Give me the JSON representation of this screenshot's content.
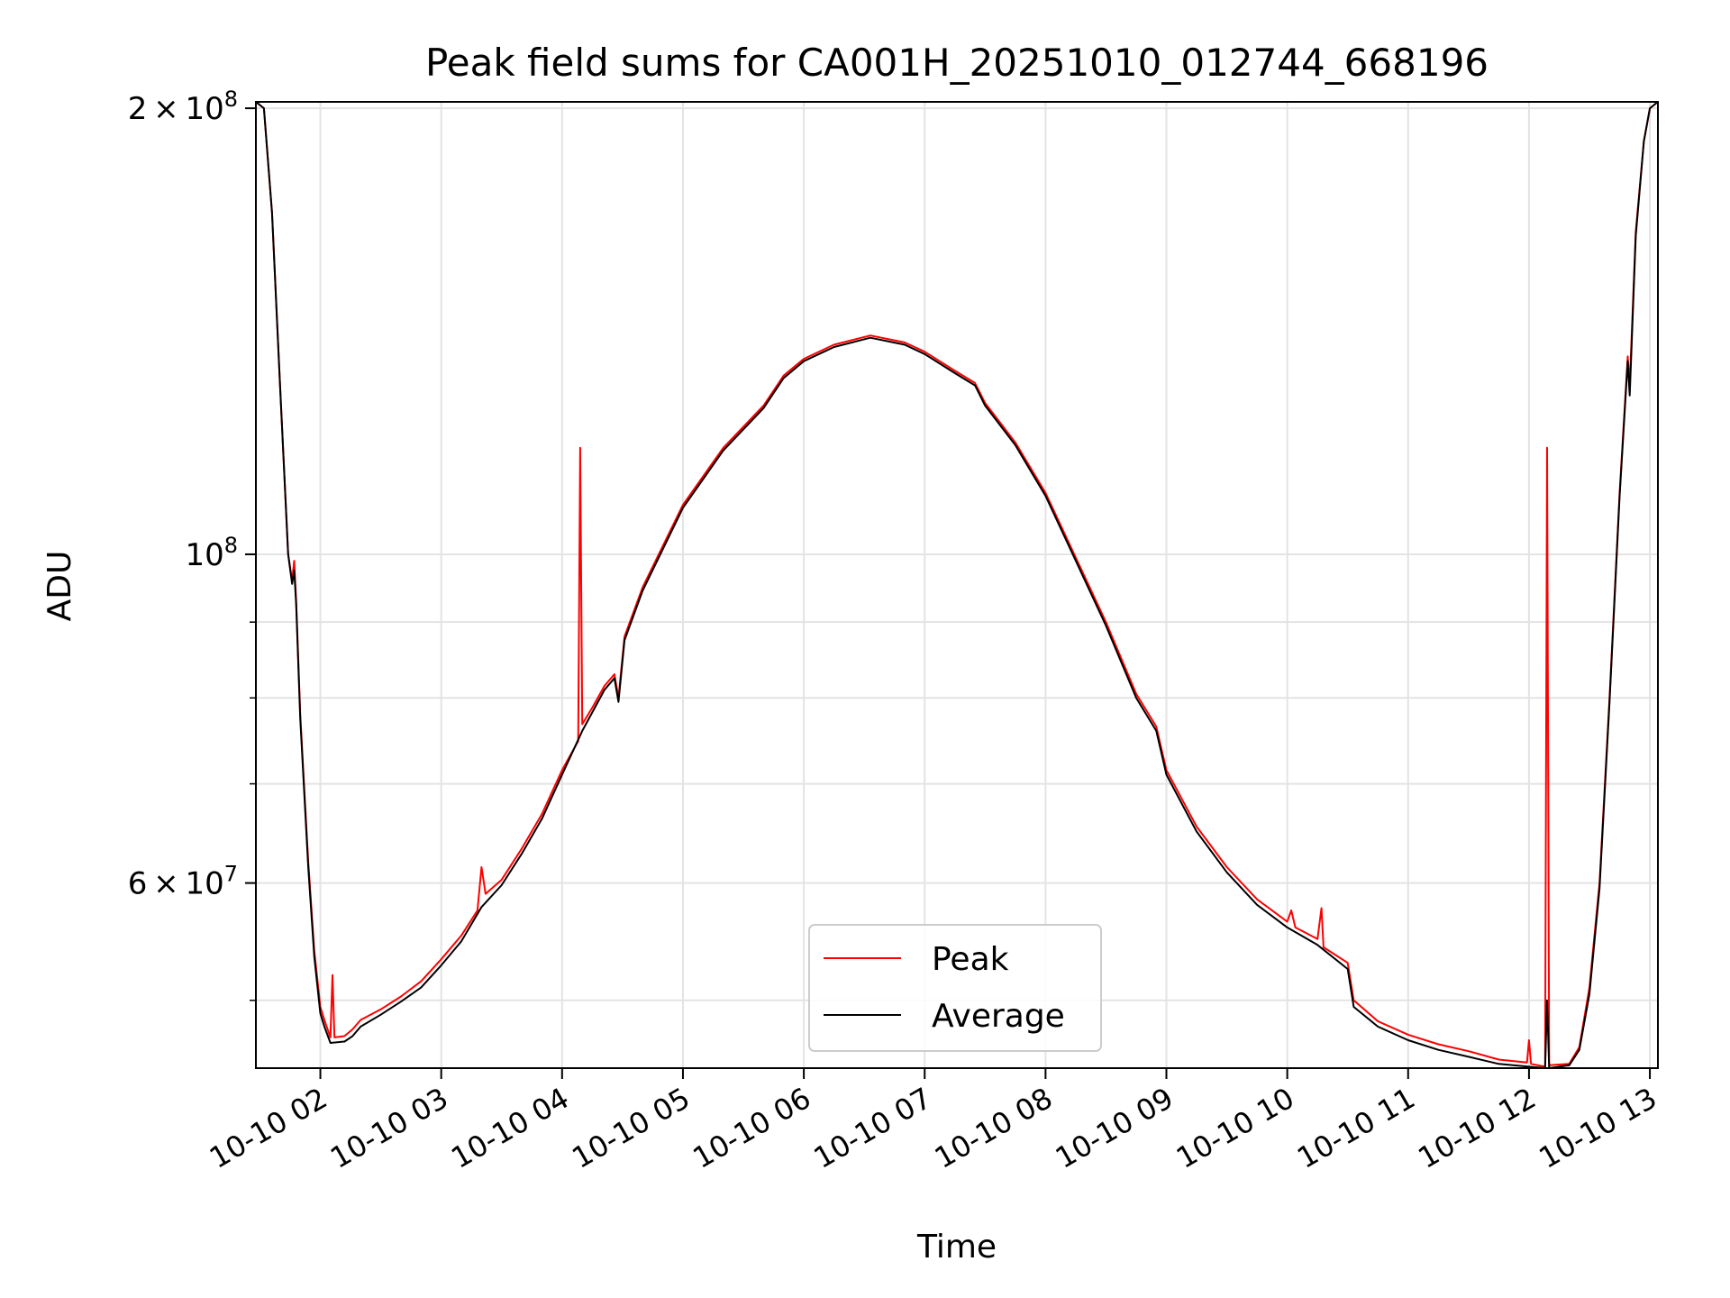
{
  "chart_data": {
    "type": "line",
    "title": "Peak field sums for CA001H_20251010_012744_668196",
    "xlabel": "Time",
    "ylabel": "ADU",
    "y_scale": "log",
    "grid": true,
    "legend_position": "lower center",
    "xlim": [
      "2025-10-10 01:28",
      "2025-10-10 13:04"
    ],
    "ylim": [
      45000000,
      202000000
    ],
    "x_ticks": [
      {
        "t": "2025-10-10 02:00",
        "label": "10-10 02"
      },
      {
        "t": "2025-10-10 03:00",
        "label": "10-10 03"
      },
      {
        "t": "2025-10-10 04:00",
        "label": "10-10 04"
      },
      {
        "t": "2025-10-10 05:00",
        "label": "10-10 05"
      },
      {
        "t": "2025-10-10 06:00",
        "label": "10-10 06"
      },
      {
        "t": "2025-10-10 07:00",
        "label": "10-10 07"
      },
      {
        "t": "2025-10-10 08:00",
        "label": "10-10 08"
      },
      {
        "t": "2025-10-10 09:00",
        "label": "10-10 09"
      },
      {
        "t": "2025-10-10 10:00",
        "label": "10-10 10"
      },
      {
        "t": "2025-10-10 11:00",
        "label": "10-10 11"
      },
      {
        "t": "2025-10-10 12:00",
        "label": "10-10 12"
      },
      {
        "t": "2025-10-10 13:00",
        "label": "10-10 13"
      }
    ],
    "y_major_ticks": [
      {
        "value": 60000000,
        "mantissa": "6",
        "exponent": "7"
      },
      {
        "value": 100000000,
        "mantissa": "",
        "exponent": "8"
      },
      {
        "value": 200000000,
        "mantissa": "2",
        "exponent": "8"
      }
    ],
    "y_minor_gridlines": [
      50000000,
      70000000,
      80000000,
      90000000
    ],
    "series": [
      {
        "name": "Peak",
        "color": "#ff0000",
        "points": [
          [
            "2025-10-10 01:28",
            202000000
          ],
          [
            "2025-10-10 01:32",
            200000000
          ],
          [
            "2025-10-10 01:36",
            170000000
          ],
          [
            "2025-10-10 01:40",
            130000000
          ],
          [
            "2025-10-10 01:44",
            100000000
          ],
          [
            "2025-10-10 01:46",
            96000000
          ],
          [
            "2025-10-10 01:47",
            99000000
          ],
          [
            "2025-10-10 01:48",
            93000000
          ],
          [
            "2025-10-10 01:50",
            78000000
          ],
          [
            "2025-10-10 01:54",
            62000000
          ],
          [
            "2025-10-10 01:57",
            54000000
          ],
          [
            "2025-10-10 02:00",
            49500000
          ],
          [
            "2025-10-10 02:02",
            48500000
          ],
          [
            "2025-10-10 02:05",
            47200000
          ],
          [
            "2025-10-10 02:06",
            52000000
          ],
          [
            "2025-10-10 02:07",
            47200000
          ],
          [
            "2025-10-10 02:12",
            47300000
          ],
          [
            "2025-10-10 02:16",
            47800000
          ],
          [
            "2025-10-10 02:20",
            48500000
          ],
          [
            "2025-10-10 02:30",
            49300000
          ],
          [
            "2025-10-10 02:40",
            50300000
          ],
          [
            "2025-10-10 02:50",
            51500000
          ],
          [
            "2025-10-10 03:00",
            53300000
          ],
          [
            "2025-10-10 03:10",
            55300000
          ],
          [
            "2025-10-10 03:18",
            57500000
          ],
          [
            "2025-10-10 03:20",
            61500000
          ],
          [
            "2025-10-10 03:22",
            59000000
          ],
          [
            "2025-10-10 03:30",
            60300000
          ],
          [
            "2025-10-10 03:40",
            63300000
          ],
          [
            "2025-10-10 03:50",
            66800000
          ],
          [
            "2025-10-10 04:00",
            71500000
          ],
          [
            "2025-10-10 04:08",
            74800000
          ],
          [
            "2025-10-10 04:09",
            118000000
          ],
          [
            "2025-10-10 04:10",
            76800000
          ],
          [
            "2025-10-10 04:15",
            78800000
          ],
          [
            "2025-10-10 04:21",
            81500000
          ],
          [
            "2025-10-10 04:26",
            83000000
          ],
          [
            "2025-10-10 04:28",
            80000000
          ],
          [
            "2025-10-10 04:31",
            88000000
          ],
          [
            "2025-10-10 04:40",
            95000000
          ],
          [
            "2025-10-10 05:00",
            108000000
          ],
          [
            "2025-10-10 05:20",
            118000000
          ],
          [
            "2025-10-10 05:40",
            126000000
          ],
          [
            "2025-10-10 05:50",
            132000000
          ],
          [
            "2025-10-10 06:00",
            135500000
          ],
          [
            "2025-10-10 06:15",
            138500000
          ],
          [
            "2025-10-10 06:33",
            140500000
          ],
          [
            "2025-10-10 06:50",
            139000000
          ],
          [
            "2025-10-10 07:00",
            137000000
          ],
          [
            "2025-10-10 07:15",
            133000000
          ],
          [
            "2025-10-10 07:25",
            130500000
          ],
          [
            "2025-10-10 07:30",
            126500000
          ],
          [
            "2025-10-10 07:45",
            119000000
          ],
          [
            "2025-10-10 08:00",
            110000000
          ],
          [
            "2025-10-10 08:15",
            99500000
          ],
          [
            "2025-10-10 08:30",
            90000000
          ],
          [
            "2025-10-10 08:45",
            80500000
          ],
          [
            "2025-10-10 08:55",
            76500000
          ],
          [
            "2025-10-10 09:00",
            71500000
          ],
          [
            "2025-10-10 09:15",
            65500000
          ],
          [
            "2025-10-10 09:30",
            61500000
          ],
          [
            "2025-10-10 09:45",
            58500000
          ],
          [
            "2025-10-10 10:00",
            56500000
          ],
          [
            "2025-10-10 10:02",
            57500000
          ],
          [
            "2025-10-10 10:04",
            56000000
          ],
          [
            "2025-10-10 10:15",
            55000000
          ],
          [
            "2025-10-10 10:17",
            57700000
          ],
          [
            "2025-10-10 10:18",
            54300000
          ],
          [
            "2025-10-10 10:30",
            53000000
          ],
          [
            "2025-10-10 10:33",
            50000000
          ],
          [
            "2025-10-10 10:45",
            48400000
          ],
          [
            "2025-10-10 11:00",
            47400000
          ],
          [
            "2025-10-10 11:15",
            46700000
          ],
          [
            "2025-10-10 11:30",
            46200000
          ],
          [
            "2025-10-10 11:45",
            45600000
          ],
          [
            "2025-10-10 11:59",
            45400000
          ],
          [
            "2025-10-10 12:00",
            47000000
          ],
          [
            "2025-10-10 12:01",
            45300000
          ],
          [
            "2025-10-10 12:08",
            45100000
          ],
          [
            "2025-10-10 12:09",
            118000000
          ],
          [
            "2025-10-10 12:10",
            45200000
          ],
          [
            "2025-10-10 12:20",
            45300000
          ],
          [
            "2025-10-10 12:25",
            46500000
          ],
          [
            "2025-10-10 12:30",
            51000000
          ],
          [
            "2025-10-10 12:35",
            60000000
          ],
          [
            "2025-10-10 12:40",
            80000000
          ],
          [
            "2025-10-10 12:45",
            110000000
          ],
          [
            "2025-10-10 12:49",
            136000000
          ],
          [
            "2025-10-10 12:50",
            130000000
          ],
          [
            "2025-10-10 12:53",
            165000000
          ],
          [
            "2025-10-10 12:57",
            190000000
          ],
          [
            "2025-10-10 13:00",
            200000000
          ],
          [
            "2025-10-10 13:04",
            202000000
          ]
        ]
      },
      {
        "name": "Average",
        "color": "#000000",
        "points": [
          [
            "2025-10-10 01:28",
            202000000
          ],
          [
            "2025-10-10 01:32",
            200000000
          ],
          [
            "2025-10-10 01:36",
            170000000
          ],
          [
            "2025-10-10 01:40",
            130000000
          ],
          [
            "2025-10-10 01:44",
            100000000
          ],
          [
            "2025-10-10 01:46",
            95500000
          ],
          [
            "2025-10-10 01:47",
            97500000
          ],
          [
            "2025-10-10 01:48",
            92500000
          ],
          [
            "2025-10-10 01:50",
            77500000
          ],
          [
            "2025-10-10 01:54",
            61500000
          ],
          [
            "2025-10-10 01:57",
            53500000
          ],
          [
            "2025-10-10 02:00",
            49000000
          ],
          [
            "2025-10-10 02:02",
            48000000
          ],
          [
            "2025-10-10 02:05",
            46800000
          ],
          [
            "2025-10-10 02:12",
            46900000
          ],
          [
            "2025-10-10 02:16",
            47300000
          ],
          [
            "2025-10-10 02:20",
            48000000
          ],
          [
            "2025-10-10 02:30",
            48900000
          ],
          [
            "2025-10-10 02:40",
            49900000
          ],
          [
            "2025-10-10 02:50",
            51000000
          ],
          [
            "2025-10-10 03:00",
            52800000
          ],
          [
            "2025-10-10 03:10",
            54800000
          ],
          [
            "2025-10-10 03:20",
            57800000
          ],
          [
            "2025-10-10 03:30",
            59800000
          ],
          [
            "2025-10-10 03:40",
            62800000
          ],
          [
            "2025-10-10 03:50",
            66300000
          ],
          [
            "2025-10-10 04:00",
            71000000
          ],
          [
            "2025-10-10 04:10",
            76000000
          ],
          [
            "2025-10-10 04:21",
            81000000
          ],
          [
            "2025-10-10 04:26",
            82500000
          ],
          [
            "2025-10-10 04:28",
            79500000
          ],
          [
            "2025-10-10 04:31",
            87500000
          ],
          [
            "2025-10-10 04:40",
            94500000
          ],
          [
            "2025-10-10 05:00",
            107500000
          ],
          [
            "2025-10-10 05:20",
            117500000
          ],
          [
            "2025-10-10 05:40",
            125500000
          ],
          [
            "2025-10-10 05:50",
            131500000
          ],
          [
            "2025-10-10 06:00",
            135000000
          ],
          [
            "2025-10-10 06:15",
            138000000
          ],
          [
            "2025-10-10 06:33",
            140000000
          ],
          [
            "2025-10-10 06:50",
            138500000
          ],
          [
            "2025-10-10 07:00",
            136500000
          ],
          [
            "2025-10-10 07:15",
            132500000
          ],
          [
            "2025-10-10 07:25",
            130000000
          ],
          [
            "2025-10-10 07:30",
            126000000
          ],
          [
            "2025-10-10 07:45",
            118500000
          ],
          [
            "2025-10-10 08:00",
            109500000
          ],
          [
            "2025-10-10 08:15",
            99000000
          ],
          [
            "2025-10-10 08:30",
            89500000
          ],
          [
            "2025-10-10 08:45",
            80000000
          ],
          [
            "2025-10-10 08:55",
            76000000
          ],
          [
            "2025-10-10 09:00",
            71000000
          ],
          [
            "2025-10-10 09:15",
            65000000
          ],
          [
            "2025-10-10 09:30",
            61000000
          ],
          [
            "2025-10-10 09:45",
            58000000
          ],
          [
            "2025-10-10 10:00",
            56000000
          ],
          [
            "2025-10-10 10:15",
            54500000
          ],
          [
            "2025-10-10 10:30",
            52500000
          ],
          [
            "2025-10-10 10:33",
            49500000
          ],
          [
            "2025-10-10 10:45",
            48000000
          ],
          [
            "2025-10-10 11:00",
            47000000
          ],
          [
            "2025-10-10 11:15",
            46300000
          ],
          [
            "2025-10-10 11:30",
            45800000
          ],
          [
            "2025-10-10 11:45",
            45300000
          ],
          [
            "2025-10-10 12:00",
            45100000
          ],
          [
            "2025-10-10 12:08",
            45000000
          ],
          [
            "2025-10-10 12:09",
            50000000
          ],
          [
            "2025-10-10 12:10",
            45000000
          ],
          [
            "2025-10-10 12:20",
            45200000
          ],
          [
            "2025-10-10 12:25",
            46300000
          ],
          [
            "2025-10-10 12:30",
            50500000
          ],
          [
            "2025-10-10 12:35",
            59500000
          ],
          [
            "2025-10-10 12:40",
            79500000
          ],
          [
            "2025-10-10 12:45",
            109500000
          ],
          [
            "2025-10-10 12:49",
            135000000
          ],
          [
            "2025-10-10 12:50",
            128000000
          ],
          [
            "2025-10-10 12:53",
            164000000
          ],
          [
            "2025-10-10 12:57",
            190000000
          ],
          [
            "2025-10-10 13:00",
            200000000
          ],
          [
            "2025-10-10 13:04",
            202000000
          ]
        ]
      }
    ]
  }
}
